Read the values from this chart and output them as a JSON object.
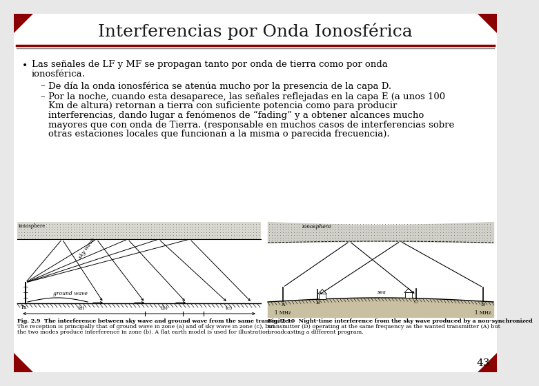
{
  "title": "Interferencias por Onda Ionosférica",
  "title_fontsize": 18,
  "title_color": "#1a1a1a",
  "bg_color": "#e8e8e8",
  "slide_bg": "white",
  "header_line1_color": "#8B0000",
  "header_line2_color": "#808080",
  "bullet_main": "Las señales de LF y MF se propagan tanto por onda de tierra como por onda ionosférica.",
  "sub1": "De día la onda ionosférica se atenúa mucho por la presencia de la capa D.",
  "sub2_lines": [
    "Por la noche, cuando esta desaparece, las señales reflejadas en la capa E (a unos 100",
    "Km de altura) retornan a tierra con suficiente potencia como para producir",
    "interferencias, dando lugar a fenómenos de “fading” y a obtener alcances mucho",
    "mayores que con onda de Tierra. (responsable en muchos casos de interferencias sobre",
    "otras estaciones locales que funcionan a la misma o parecida frecuencia)."
  ],
  "page_number": "43",
  "text_fontsize": 9.5,
  "sub_fontsize": 9.5,
  "cap_fontsize": 5.8,
  "fig_caption1_lines": [
    "Fig. 2.9  The interference between sky wave and ground wave from the same transmitter.",
    "The reception is principally that of ground wave in zone (a) and of sky wave in zone (c), but",
    "the two modes produce interference in zone (b). A flat earth model is used for illustration."
  ],
  "fig_caption2_lines": [
    "Fig. 2.10  Night-time interference from the sky wave produced by a non-synchronized",
    "transmitter (D) operating at the same frequency as the wanted transmitter (A) but",
    "broadcasting a different program."
  ],
  "red_color": "#8B0000",
  "gray_color": "#808080"
}
